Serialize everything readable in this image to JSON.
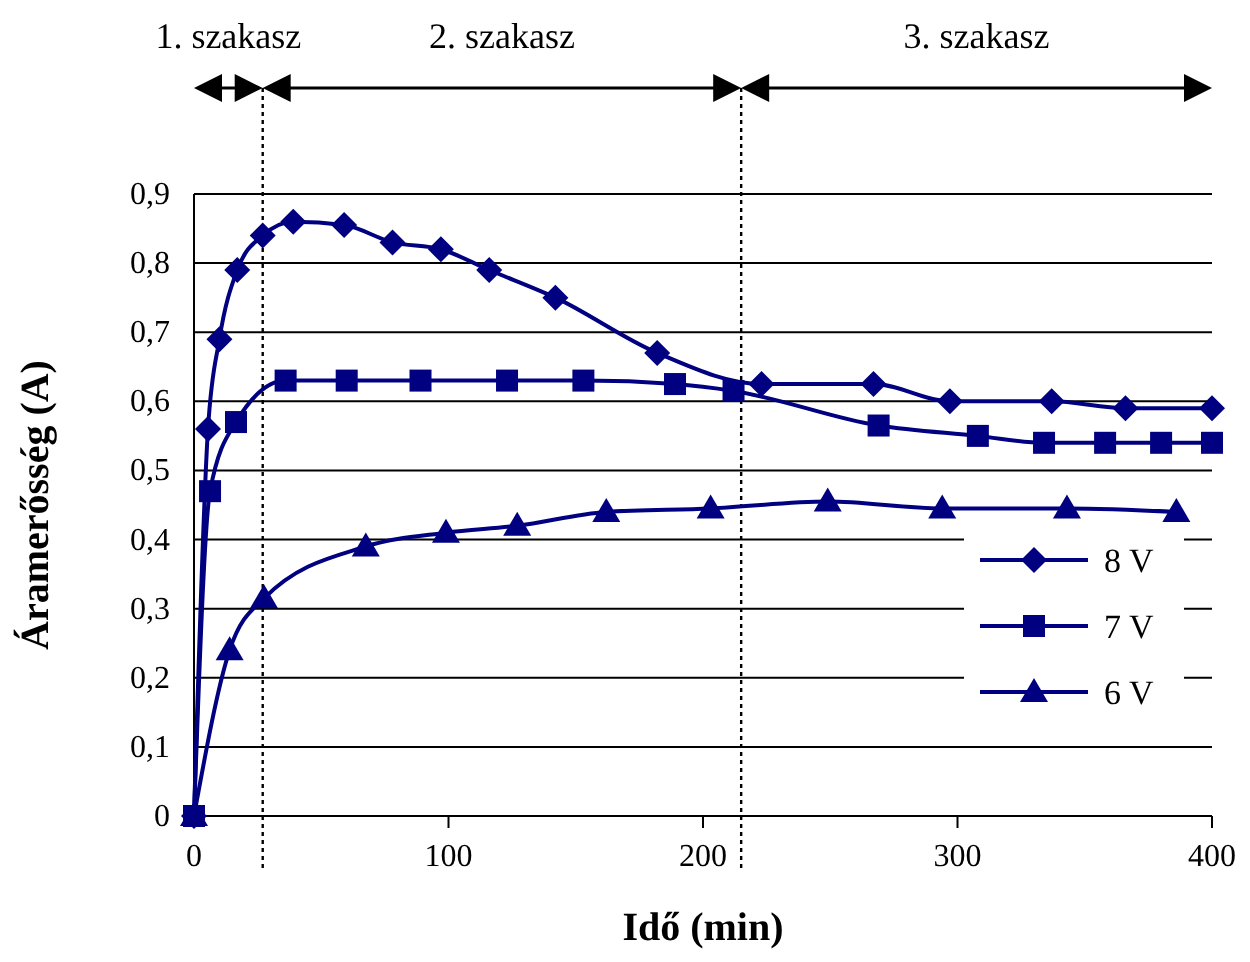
{
  "chart_data": {
    "type": "line",
    "xlabel": "Idő (min)",
    "ylabel": "Áramerősség (A)",
    "xlim": [
      0,
      400
    ],
    "xticks": [
      0,
      100,
      200,
      300,
      400
    ],
    "ylim": [
      0,
      0.9
    ],
    "yticks": [
      0,
      {
        "value": 0.1,
        "label": "0,1"
      },
      {
        "value": 0.2,
        "label": "0,2"
      },
      {
        "value": 0.3,
        "label": "0,3"
      },
      {
        "value": 0.4,
        "label": "0,4"
      },
      {
        "value": 0.5,
        "label": "0,5"
      },
      {
        "value": 0.6,
        "label": "0,6"
      },
      {
        "value": 0.7,
        "label": "0,7"
      },
      {
        "value": 0.8,
        "label": "0,8"
      },
      {
        "value": 0.9,
        "label": "0,9"
      }
    ],
    "grid": "y",
    "legend": "right",
    "line_style": "solid",
    "annotations": [
      "1. szakasz",
      "2. szakasz",
      "3. szakasz"
    ],
    "ref_lines": [
      {
        "axis": "x",
        "value": 27,
        "line_style": "dotted",
        "color": "#000000"
      },
      {
        "axis": "x",
        "value": 215,
        "line_style": "dotted",
        "color": "#000000"
      }
    ],
    "series": [
      {
        "name": "8 V",
        "color": "#000080",
        "marker": "diamond",
        "x": [
          0,
          5.5,
          10,
          17,
          27,
          39,
          59,
          78,
          97,
          116,
          142,
          182,
          223,
          267,
          297,
          337,
          366,
          400
        ],
        "values": [
          0,
          0.56,
          0.69,
          0.79,
          0.84,
          0.86,
          0.855,
          0.83,
          0.82,
          0.79,
          0.75,
          0.67,
          0.625,
          0.625,
          0.6,
          0.6,
          0.59,
          0.59
        ]
      },
      {
        "name": "7 V",
        "color": "#000080",
        "marker": "square",
        "x": [
          0,
          6.3,
          16.5,
          36,
          60,
          89,
          123,
          153,
          189,
          212,
          269,
          308,
          334,
          358,
          380,
          400
        ],
        "values": [
          0,
          0.47,
          0.57,
          0.63,
          0.63,
          0.63,
          0.63,
          0.63,
          0.625,
          0.615,
          0.565,
          0.55,
          0.54,
          0.54,
          0.54,
          0.54
        ]
      },
      {
        "name": "6 V",
        "color": "#000080",
        "marker": "triangle",
        "x": [
          0,
          14,
          27.5,
          67.5,
          99,
          127,
          162,
          203,
          249,
          294,
          343,
          386
        ],
        "values": [
          0,
          0.24,
          0.315,
          0.39,
          0.41,
          0.42,
          0.44,
          0.445,
          0.455,
          0.445,
          0.445,
          0.44
        ]
      }
    ]
  }
}
